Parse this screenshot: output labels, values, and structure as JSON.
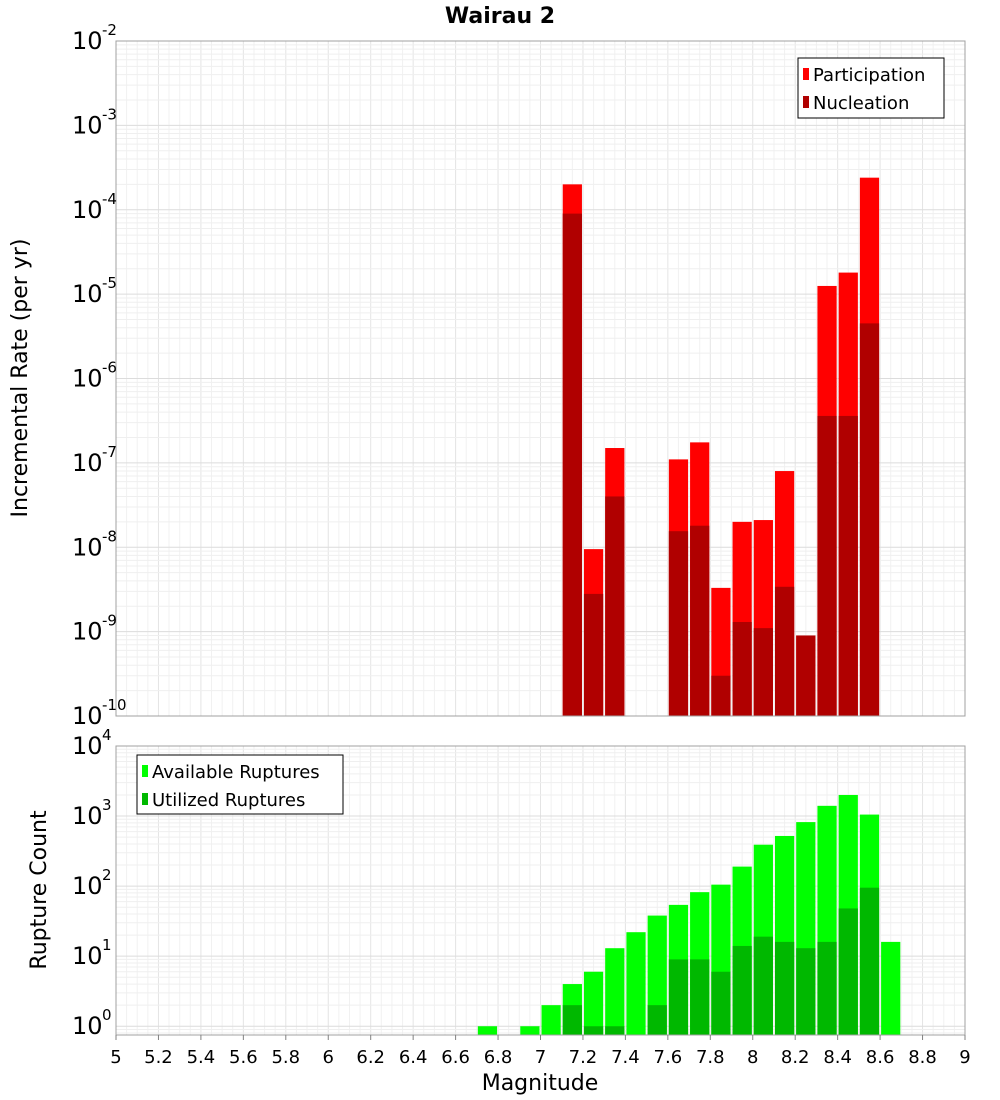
{
  "chart_data": [
    {
      "type": "bar",
      "title": "Wairau 2",
      "xlabel": "",
      "ylabel": "Incremental Rate (per yr)",
      "yscale": "log",
      "ylim": [
        1e-10,
        0.01
      ],
      "xlim": [
        5,
        9
      ],
      "ytick_exponents": [
        "-2",
        "-3",
        "-4",
        "-5",
        "-6",
        "-7",
        "-8",
        "-9",
        "-10"
      ],
      "ytick_base": "10",
      "bin_width": 0.1,
      "grid": true,
      "legend_position": "top-right",
      "x": [
        7.1,
        7.2,
        7.3,
        7.6,
        7.7,
        7.8,
        7.9,
        8.0,
        8.1,
        8.2,
        8.3,
        8.4,
        8.5
      ],
      "series": [
        {
          "name": "Participation",
          "color": "#ff0000",
          "values": [
            0.0002,
            9.5e-09,
            1.5e-07,
            1.1e-07,
            1.75e-07,
            3.3e-09,
            2e-08,
            2.1e-08,
            8e-08,
            9e-10,
            1.25e-05,
            1.8e-05,
            0.00024
          ]
        },
        {
          "name": "Nucleation",
          "color": "#b00000",
          "values": [
            9e-05,
            2.8e-09,
            4e-08,
            1.55e-08,
            1.8e-08,
            3e-10,
            1.3e-09,
            1.1e-09,
            3.4e-09,
            9e-10,
            3.6e-07,
            3.6e-07,
            4.5e-06
          ]
        }
      ]
    },
    {
      "type": "bar",
      "xlabel": "Magnitude",
      "ylabel": "Rupture Count",
      "yscale": "log",
      "ylim": [
        0.75,
        10000.0
      ],
      "xlim": [
        5,
        9
      ],
      "ytick_exponents": [
        "4",
        "3",
        "2",
        "1",
        "0"
      ],
      "ytick_base": "10",
      "bin_width": 0.1,
      "grid": true,
      "legend_position": "top-left",
      "x": [
        6.7,
        6.9,
        7.0,
        7.1,
        7.2,
        7.3,
        7.4,
        7.5,
        7.6,
        7.7,
        7.8,
        7.9,
        8.0,
        8.1,
        8.2,
        8.3,
        8.4,
        8.5,
        8.6
      ],
      "xtick_labels": [
        "5",
        "5.2",
        "5.4",
        "5.6",
        "5.8",
        "6",
        "6.2",
        "6.4",
        "6.6",
        "6.8",
        "7",
        "7.2",
        "7.4",
        "7.6",
        "7.8",
        "8",
        "8.2",
        "8.4",
        "8.6",
        "8.8",
        "9"
      ],
      "series": [
        {
          "name": "Available Ruptures",
          "color": "#00ff00",
          "values": [
            1,
            1,
            2,
            4,
            6,
            13,
            22,
            38,
            54,
            82,
            105,
            190,
            390,
            520,
            820,
            1400,
            2000,
            1050,
            16
          ]
        },
        {
          "name": "Utilized Ruptures",
          "color": "#00b800",
          "values": [
            0,
            0,
            0,
            2,
            1,
            1,
            0,
            2,
            9,
            9,
            6,
            14,
            19,
            16,
            13,
            16,
            48,
            95,
            0
          ]
        }
      ]
    }
  ]
}
